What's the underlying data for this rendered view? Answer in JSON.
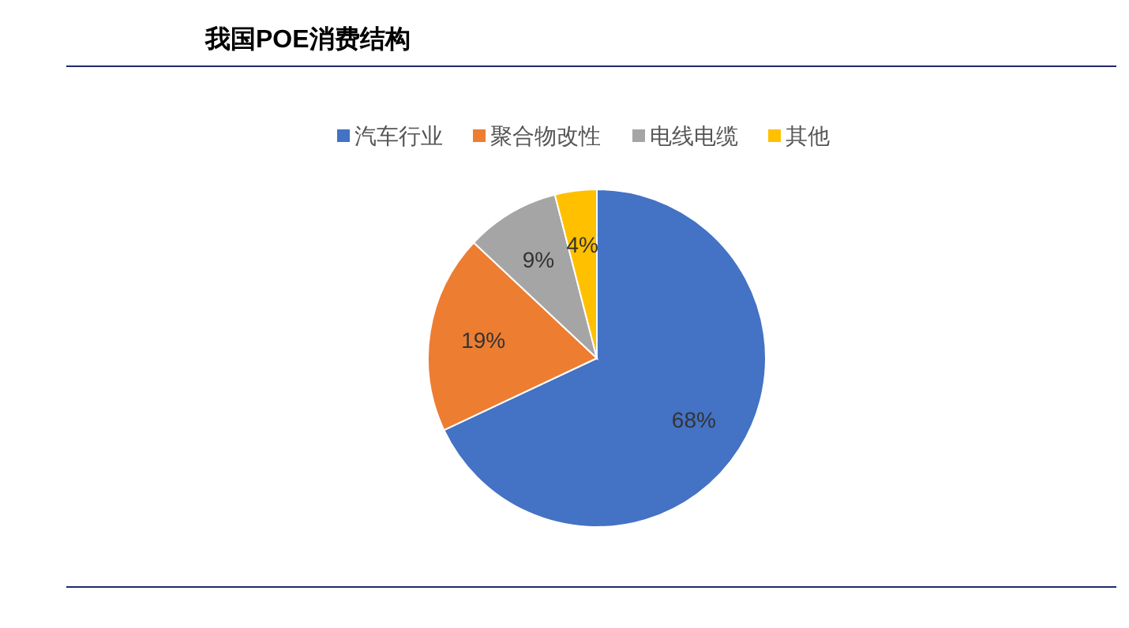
{
  "chart_data": {
    "type": "pie",
    "title": "我国POE消费结构",
    "categories": [
      "汽车行业",
      "聚合物改性",
      "电线电缆",
      "其他"
    ],
    "values": [
      68,
      19,
      9,
      4
    ],
    "colors": [
      "#4472c4",
      "#ed7d31",
      "#a5a5a5",
      "#ffc000"
    ],
    "value_labels": [
      "68%",
      "19%",
      "9%",
      "4%"
    ],
    "legend": "top"
  }
}
